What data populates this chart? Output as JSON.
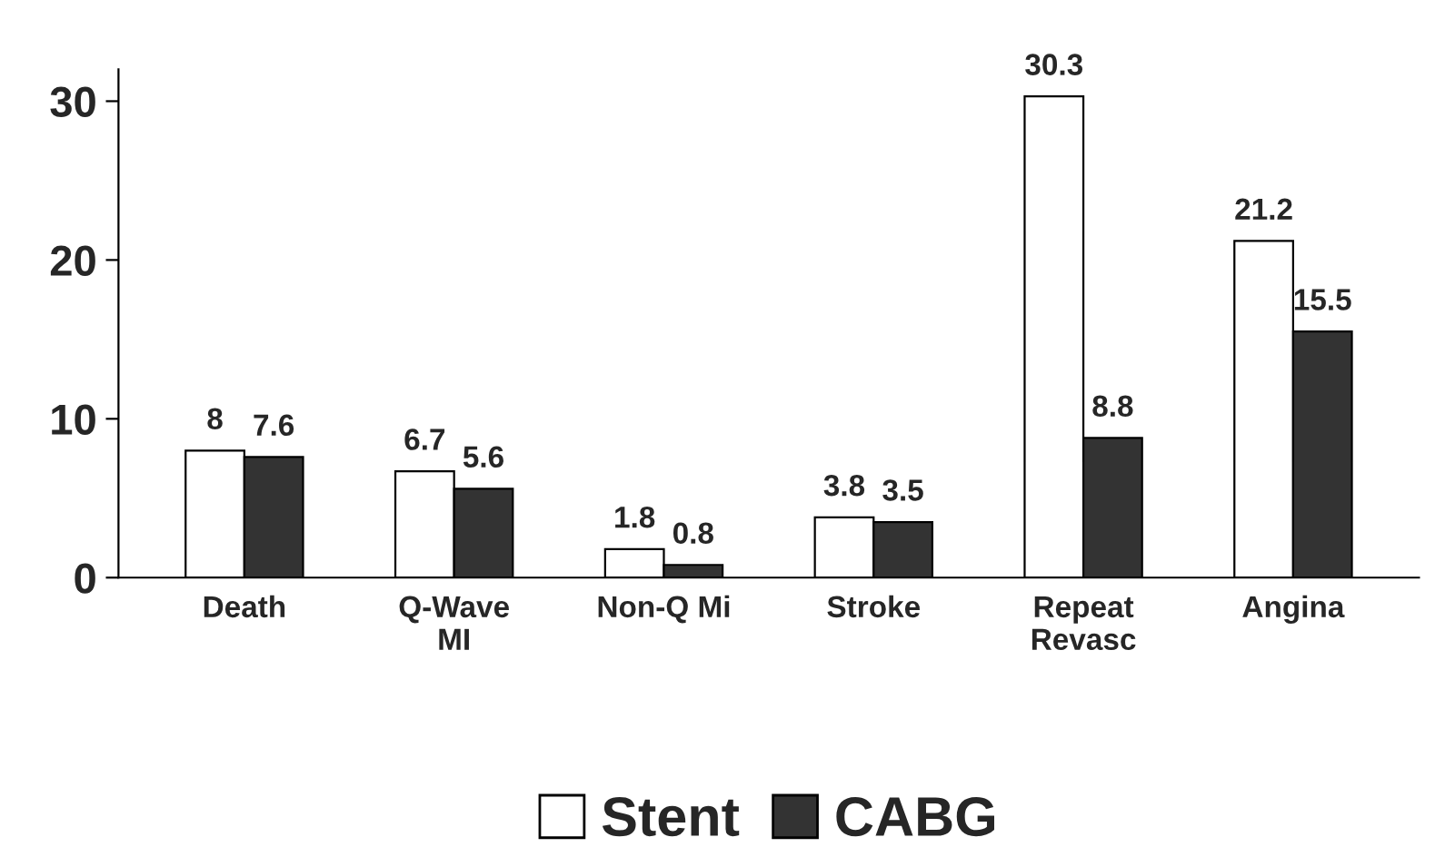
{
  "chart_data": {
    "type": "bar",
    "categories": [
      "Death",
      "Q-Wave\nMI",
      "Non-Q Mi",
      "Stroke",
      "Repeat\nRevasc",
      "Angina"
    ],
    "series": [
      {
        "name": "Stent",
        "color": "#ffffff",
        "values": [
          8,
          6.7,
          1.8,
          3.8,
          30.3,
          21.2
        ]
      },
      {
        "name": "CABG",
        "color": "#333333",
        "values": [
          7.6,
          5.6,
          0.8,
          3.5,
          8.8,
          15.5
        ]
      }
    ],
    "ylim": [
      0,
      32
    ],
    "yticks": [
      0,
      10,
      20,
      30
    ],
    "grid": false,
    "legend": "bottom",
    "data_labels": true
  }
}
